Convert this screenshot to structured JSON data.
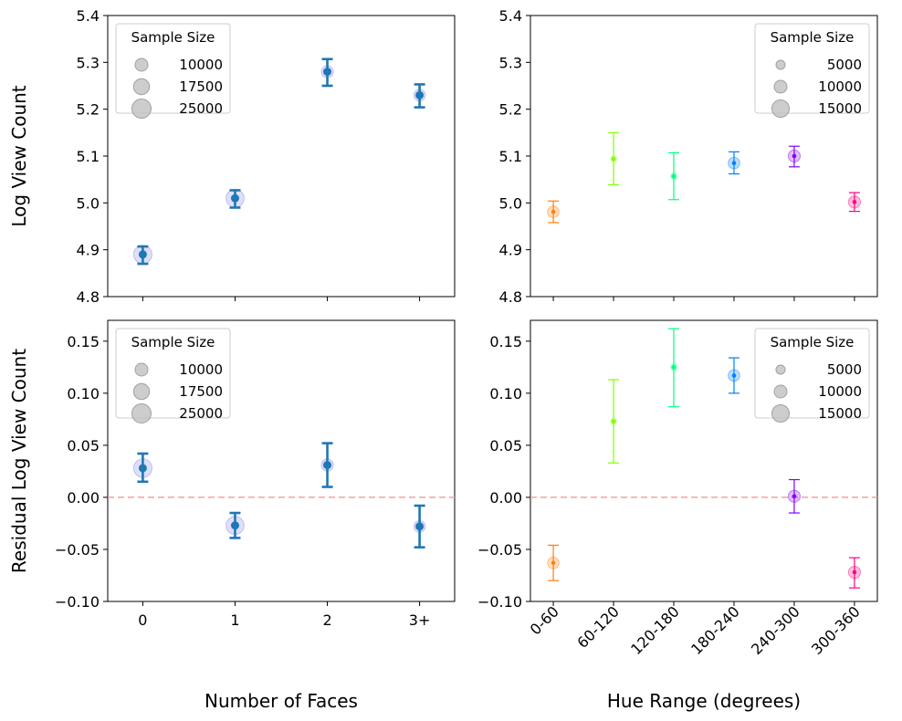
{
  "figure": {
    "left_ylabel_top": "Log View Count",
    "left_ylabel_bottom": "Residual Log View Count",
    "xlabel_left": "Number of Faces",
    "xlabel_right": "Hue Range (degrees)"
  },
  "chart_data": [
    {
      "type": "scatter",
      "panel": "top-left",
      "categories": [
        "0",
        "1",
        "2",
        "3+"
      ],
      "y": [
        4.89,
        5.01,
        5.28,
        5.23
      ],
      "err_low": [
        4.87,
        4.99,
        5.25,
        5.204
      ],
      "err_high": [
        4.907,
        5.027,
        5.307,
        5.253
      ],
      "sample_size": [
        28000,
        27000,
        12000,
        11000
      ],
      "ylim": [
        4.8,
        5.4
      ],
      "yticks": [
        4.8,
        4.9,
        5.0,
        5.1,
        5.2,
        5.3,
        5.4
      ],
      "ytick_labels": [
        "4.8",
        "4.9",
        "5.0",
        "5.1",
        "5.2",
        "5.3",
        "5.4"
      ],
      "show_xticklabels": false,
      "marker_color": "#1f77b4",
      "bubble_color": "#8080ee",
      "legend": {
        "title": "Sample Size",
        "labels": [
          "10000",
          "17500",
          "25000"
        ],
        "sizes": [
          10000,
          17500,
          25000
        ],
        "position": "top-left"
      },
      "hline": null
    },
    {
      "type": "scatter",
      "panel": "top-right",
      "categories": [
        "0-60",
        "60-120",
        "120-180",
        "180-240",
        "240-300",
        "300-360"
      ],
      "y": [
        4.981,
        5.094,
        5.057,
        5.085,
        5.1,
        5.002
      ],
      "err_low": [
        4.958,
        5.039,
        5.007,
        5.062,
        5.077,
        4.982
      ],
      "err_high": [
        5.004,
        5.15,
        5.107,
        5.109,
        5.121,
        5.022
      ],
      "sample_size": [
        11000,
        2500,
        2800,
        11000,
        12000,
        12000
      ],
      "colors": [
        "#ff7f0e",
        "#80ff00",
        "#00ff80",
        "#0080ff",
        "#8000ff",
        "#ff0080"
      ],
      "ylim": [
        4.8,
        5.4
      ],
      "yticks": [
        4.8,
        4.9,
        5.0,
        5.1,
        5.2,
        5.3,
        5.4
      ],
      "ytick_labels": [
        "4.8",
        "4.9",
        "5.0",
        "5.1",
        "5.2",
        "5.3",
        "5.4"
      ],
      "show_xticklabels": false,
      "legend": {
        "title": "Sample Size",
        "labels": [
          "5000",
          "10000",
          "15000"
        ],
        "sizes": [
          5000,
          10000,
          15000
        ],
        "position": "top-right"
      },
      "hline": null
    },
    {
      "type": "scatter",
      "panel": "bottom-left",
      "categories": [
        "0",
        "1",
        "2",
        "3+"
      ],
      "y": [
        0.028,
        -0.027,
        0.031,
        -0.028
      ],
      "err_low": [
        0.015,
        -0.039,
        0.01,
        -0.048
      ],
      "err_high": [
        0.042,
        -0.015,
        0.052,
        -0.008
      ],
      "sample_size": [
        28000,
        27000,
        12000,
        11000
      ],
      "ylim": [
        -0.1,
        0.17
      ],
      "yticks": [
        -0.1,
        -0.05,
        0.0,
        0.05,
        0.1,
        0.15
      ],
      "ytick_labels": [
        "−0.10",
        "−0.05",
        "0.00",
        "0.05",
        "0.10",
        "0.15"
      ],
      "show_xticklabels": true,
      "marker_color": "#1f77b4",
      "bubble_color": "#8080ee",
      "legend": {
        "title": "Sample Size",
        "labels": [
          "10000",
          "17500",
          "25000"
        ],
        "sizes": [
          10000,
          17500,
          25000
        ],
        "position": "top-left"
      },
      "hline": 0.0,
      "hline_color": "#f4a0a0"
    },
    {
      "type": "scatter",
      "panel": "bottom-right",
      "categories": [
        "0-60",
        "60-120",
        "120-180",
        "180-240",
        "240-300",
        "300-360"
      ],
      "y": [
        -0.063,
        0.073,
        0.125,
        0.117,
        0.001,
        -0.072
      ],
      "err_low": [
        -0.08,
        0.033,
        0.087,
        0.1,
        -0.015,
        -0.087
      ],
      "err_high": [
        -0.046,
        0.113,
        0.162,
        0.134,
        0.017,
        -0.058
      ],
      "sample_size": [
        11000,
        2500,
        2800,
        11000,
        12000,
        12000
      ],
      "colors": [
        "#ff7f0e",
        "#80ff00",
        "#00ff80",
        "#0080ff",
        "#8000ff",
        "#ff0080"
      ],
      "ylim": [
        -0.1,
        0.17
      ],
      "yticks": [
        -0.1,
        -0.05,
        0.0,
        0.05,
        0.1,
        0.15
      ],
      "ytick_labels": [
        "−0.10",
        "−0.05",
        "0.00",
        "0.05",
        "0.10",
        "0.15"
      ],
      "show_xticklabels": true,
      "rotate_xticklabels": 45,
      "legend": {
        "title": "Sample Size",
        "labels": [
          "5000",
          "10000",
          "15000"
        ],
        "sizes": [
          5000,
          10000,
          15000
        ],
        "position": "top-right"
      },
      "hline": 0.0,
      "hline_color": "#f4a0a0"
    }
  ]
}
